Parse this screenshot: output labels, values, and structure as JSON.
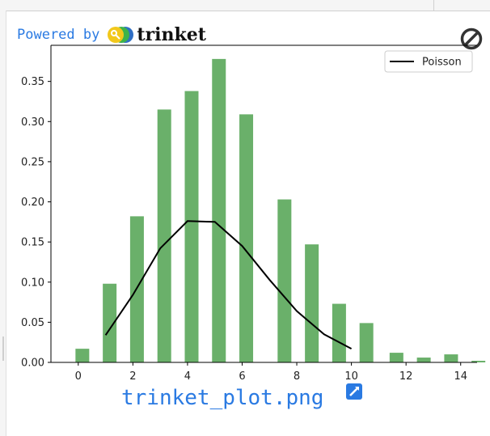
{
  "header": {
    "powered_by": "Powered by",
    "brand": "trinket"
  },
  "file": {
    "name": "trinket_plot.png"
  },
  "icons": {
    "logo": "trinket-logo-icon",
    "stop": "stop-icon",
    "open": "open-external-icon"
  },
  "colors": {
    "bar": "#6ab06a",
    "line": "#000000",
    "link": "#2a7ae2"
  },
  "chart_data": {
    "type": "bar",
    "title": "",
    "xlabel": "",
    "ylabel": "",
    "xlim": [
      -1,
      14.6
    ],
    "ylim": [
      0,
      0.395
    ],
    "xticks": [
      0,
      2,
      4,
      6,
      8,
      10,
      12,
      14
    ],
    "yticks": [
      0.0,
      0.05,
      0.1,
      0.15,
      0.2,
      0.25,
      0.3,
      0.35
    ],
    "ytick_labels": [
      "0.00",
      "0.05",
      "0.10",
      "0.15",
      "0.20",
      "0.25",
      "0.30",
      "0.35"
    ],
    "grid": false,
    "legend": {
      "position": "top-right",
      "entries": [
        "Poisson"
      ]
    },
    "series": [
      {
        "type": "bar",
        "x": [
          0.15,
          1.15,
          2.15,
          3.15,
          4.15,
          5.15,
          6.15,
          7.55,
          8.55,
          9.55,
          10.55,
          11.65,
          12.65,
          13.65,
          14.65
        ],
        "values": [
          0.017,
          0.098,
          0.182,
          0.315,
          0.338,
          0.378,
          0.309,
          0.203,
          0.147,
          0.073,
          0.049,
          0.012,
          0.006,
          0.01,
          0.002
        ]
      },
      {
        "type": "line",
        "name": "Poisson",
        "x": [
          1,
          2,
          3,
          4,
          5,
          6,
          7,
          8,
          9,
          10
        ],
        "values": [
          0.034,
          0.084,
          0.142,
          0.176,
          0.175,
          0.145,
          0.103,
          0.064,
          0.035,
          0.017
        ]
      }
    ]
  }
}
